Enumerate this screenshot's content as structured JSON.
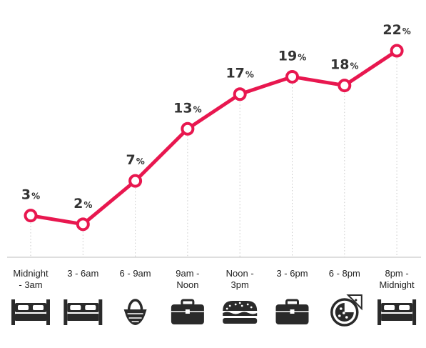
{
  "chart_data": {
    "type": "line",
    "categories": [
      [
        "Midnight",
        "- 3am"
      ],
      [
        "3 - 6am"
      ],
      [
        "6 - 9am"
      ],
      [
        "9am -",
        "Noon"
      ],
      [
        "Noon -",
        "3pm"
      ],
      [
        "3 - 6pm"
      ],
      [
        "6 - 8pm"
      ],
      [
        "8pm -",
        "Midnight"
      ]
    ],
    "values": [
      3,
      2,
      7,
      13,
      17,
      19,
      18,
      22
    ],
    "value_suffix": "%",
    "icons": [
      "bed-icon",
      "bed-icon",
      "basket-icon",
      "briefcase-icon",
      "sandwich-icon",
      "briefcase-icon",
      "pizza-icon",
      "bed-icon"
    ],
    "ylim": [
      0,
      22
    ],
    "grid": false,
    "legend": "none",
    "title": "",
    "xlabel": "",
    "ylabel": ""
  },
  "colors": {
    "line": "#e8174f",
    "marker_fill": "#ffffff",
    "icon": "#2a2a2a",
    "text": "#333333"
  }
}
